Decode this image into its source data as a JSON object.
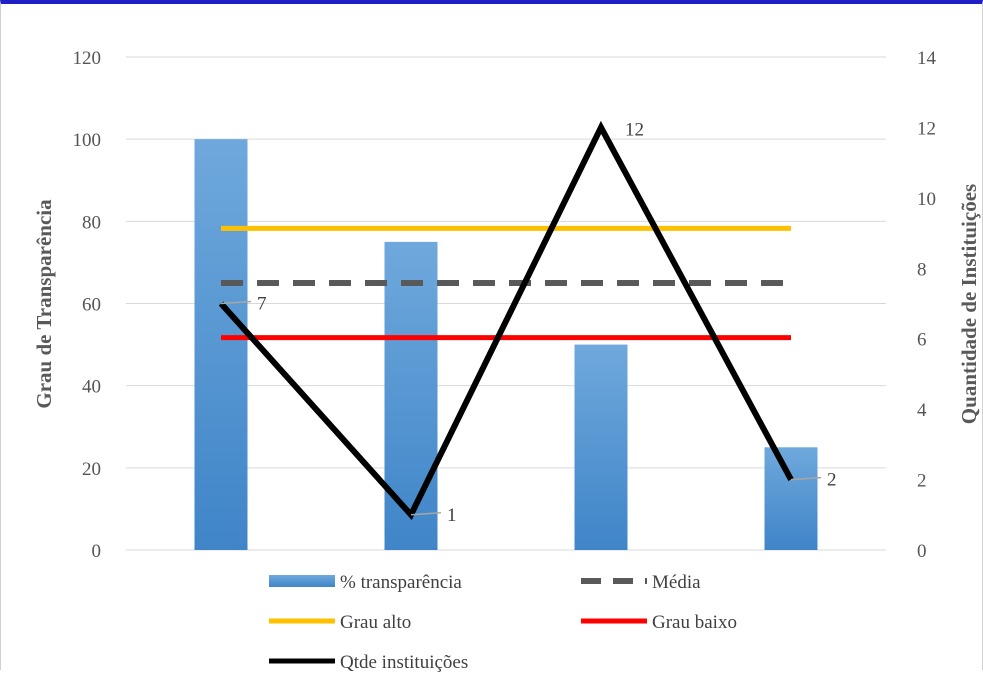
{
  "chart_data": {
    "type": "bar",
    "categories": [
      "",
      "",
      "",
      ""
    ],
    "y_left": {
      "label": "Grau de Transparência",
      "range": [
        0,
        120
      ],
      "ticks": [
        0,
        20,
        40,
        60,
        80,
        100,
        120
      ]
    },
    "y_right": {
      "label": "Quantidade de Instituições",
      "range": [
        0,
        14
      ],
      "ticks": [
        0,
        2,
        4,
        6,
        8,
        10,
        12,
        14
      ]
    },
    "grid": true,
    "legend_position": "bottom",
    "series": [
      {
        "name": "% transparência",
        "type": "bar",
        "axis": "left",
        "color": "#5b9bd5",
        "values": [
          100,
          75,
          50,
          25
        ]
      },
      {
        "name": "Média",
        "type": "line",
        "style": "dashed",
        "axis": "left",
        "color": "#595959",
        "values": [
          65,
          65,
          65,
          65
        ]
      },
      {
        "name": "Grau alto",
        "type": "line",
        "axis": "left",
        "color": "#ffc000",
        "values": [
          78.3,
          78.3,
          78.3,
          78.3
        ]
      },
      {
        "name": "Grau baixo",
        "type": "line",
        "axis": "left",
        "color": "#ff0000",
        "values": [
          51.7,
          51.7,
          51.7,
          51.7
        ]
      },
      {
        "name": "Qtde instituições",
        "type": "line",
        "axis": "right",
        "color": "#000000",
        "values": [
          7,
          1,
          12,
          2
        ],
        "data_labels": [
          "7",
          "1",
          "12",
          "2"
        ]
      }
    ]
  }
}
